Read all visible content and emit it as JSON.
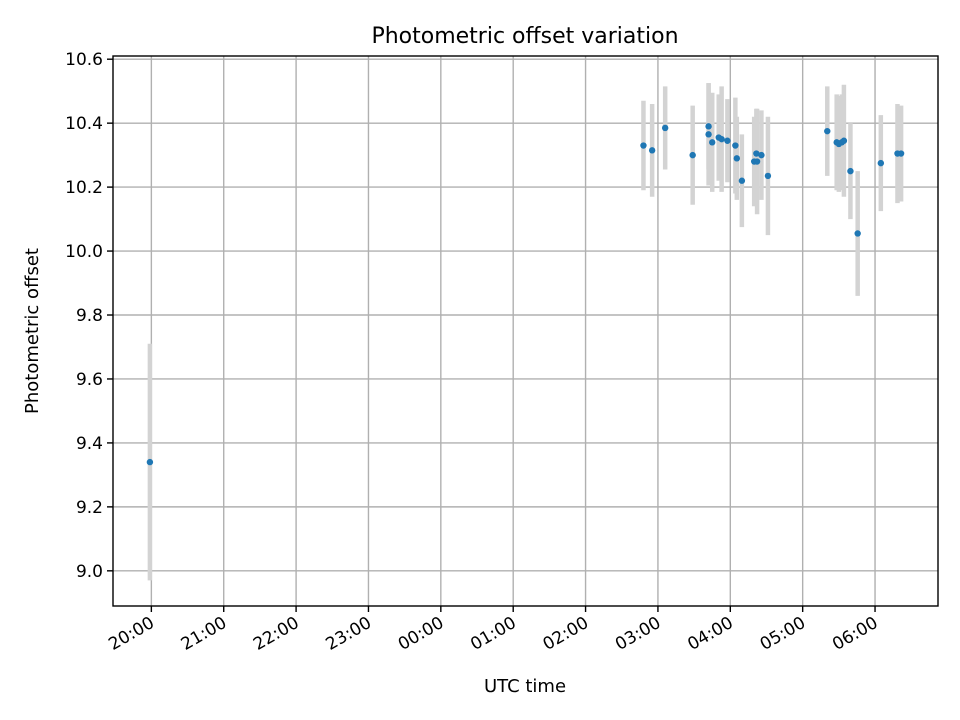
{
  "colors": {
    "point": "#1f77b4",
    "errorbar": "#d3d3d3",
    "grid": "#b0b0b0",
    "axes": "#000000"
  },
  "chart_data": {
    "type": "scatter",
    "title": "Photometric offset variation",
    "xlabel": "UTC time",
    "ylabel": "Photometric offset",
    "grid": true,
    "x_unit": "hours since 20:00 UTC",
    "xlim": [
      -0.53,
      10.87
    ],
    "ylim": [
      8.89,
      10.61
    ],
    "x_ticks": [
      {
        "h": 0,
        "label": "20:00"
      },
      {
        "h": 1,
        "label": "21:00"
      },
      {
        "h": 2,
        "label": "22:00"
      },
      {
        "h": 3,
        "label": "23:00"
      },
      {
        "h": 4,
        "label": "00:00"
      },
      {
        "h": 5,
        "label": "01:00"
      },
      {
        "h": 6,
        "label": "02:00"
      },
      {
        "h": 7,
        "label": "03:00"
      },
      {
        "h": 8,
        "label": "04:00"
      },
      {
        "h": 9,
        "label": "05:00"
      },
      {
        "h": 10,
        "label": "06:00"
      }
    ],
    "y_ticks": [
      {
        "v": 9.0,
        "label": "9.0"
      },
      {
        "v": 9.2,
        "label": "9.2"
      },
      {
        "v": 9.4,
        "label": "9.4"
      },
      {
        "v": 9.6,
        "label": "9.6"
      },
      {
        "v": 9.8,
        "label": "9.8"
      },
      {
        "v": 10.0,
        "label": "10.0"
      },
      {
        "v": 10.2,
        "label": "10.2"
      },
      {
        "v": 10.4,
        "label": "10.4"
      },
      {
        "v": 10.6,
        "label": "10.6"
      }
    ],
    "points": [
      {
        "h": -0.02,
        "y": 9.34,
        "err": 0.37
      },
      {
        "h": 6.8,
        "y": 10.33,
        "err": 0.14
      },
      {
        "h": 6.92,
        "y": 10.315,
        "err": 0.145
      },
      {
        "h": 7.1,
        "y": 10.385,
        "err": 0.13
      },
      {
        "h": 7.48,
        "y": 10.3,
        "err": 0.155
      },
      {
        "h": 7.7,
        "y": 10.39,
        "err": 0.135
      },
      {
        "h": 7.7,
        "y": 10.365,
        "err": 0.16
      },
      {
        "h": 7.75,
        "y": 10.34,
        "err": 0.155
      },
      {
        "h": 7.84,
        "y": 10.355,
        "err": 0.135
      },
      {
        "h": 7.88,
        "y": 10.35,
        "err": 0.165
      },
      {
        "h": 7.96,
        "y": 10.345,
        "err": 0.13
      },
      {
        "h": 8.07,
        "y": 10.33,
        "err": 0.15
      },
      {
        "h": 8.09,
        "y": 10.29,
        "err": 0.13
      },
      {
        "h": 8.16,
        "y": 10.22,
        "err": 0.145
      },
      {
        "h": 8.33,
        "y": 10.28,
        "err": 0.14
      },
      {
        "h": 8.36,
        "y": 10.305,
        "err": 0.14
      },
      {
        "h": 8.37,
        "y": 10.28,
        "err": 0.165
      },
      {
        "h": 8.43,
        "y": 10.3,
        "err": 0.14
      },
      {
        "h": 8.52,
        "y": 10.235,
        "err": 0.185
      },
      {
        "h": 9.34,
        "y": 10.375,
        "err": 0.14
      },
      {
        "h": 9.47,
        "y": 10.34,
        "err": 0.15
      },
      {
        "h": 9.5,
        "y": 10.335,
        "err": 0.15
      },
      {
        "h": 9.54,
        "y": 10.34,
        "err": 0.15
      },
      {
        "h": 9.57,
        "y": 10.345,
        "err": 0.175
      },
      {
        "h": 9.66,
        "y": 10.25,
        "err": 0.15
      },
      {
        "h": 9.76,
        "y": 10.055,
        "err": 0.195
      },
      {
        "h": 10.08,
        "y": 10.275,
        "err": 0.15
      },
      {
        "h": 10.31,
        "y": 10.305,
        "err": 0.155
      },
      {
        "h": 10.36,
        "y": 10.305,
        "err": 0.15
      }
    ]
  }
}
